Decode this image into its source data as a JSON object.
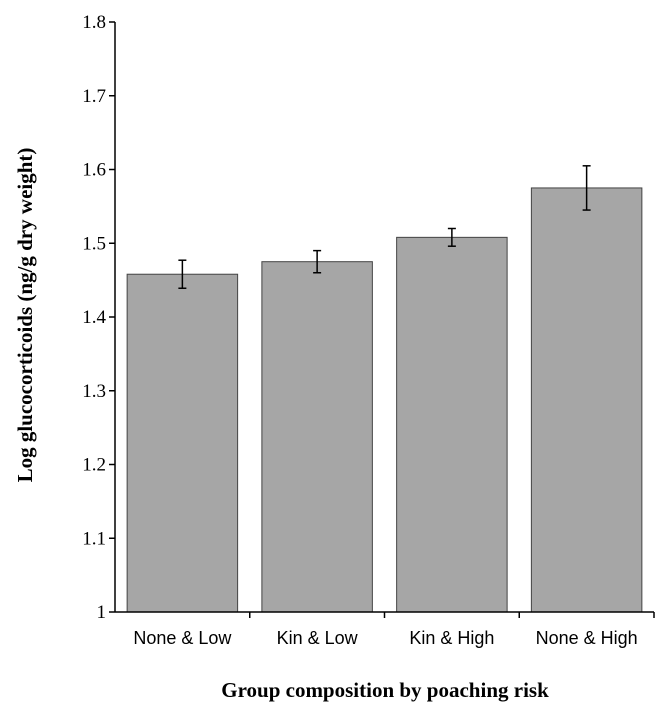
{
  "chart_data": {
    "type": "bar",
    "title": "",
    "xlabel": "Group composition by poaching risk",
    "ylabel": "Log glucocorticoids (ng/g dry weight)",
    "categories": [
      "None & Low",
      "Kin & Low",
      "Kin & High",
      "None & High"
    ],
    "values": [
      1.458,
      1.475,
      1.508,
      1.575
    ],
    "error_bars": [
      0.019,
      0.015,
      0.012,
      0.03
    ],
    "ylim": [
      1.0,
      1.8
    ],
    "yticks": [
      1,
      1.1,
      1.2,
      1.3,
      1.4,
      1.5,
      1.6,
      1.7,
      1.8
    ],
    "ytick_labels": [
      "1",
      "1.1",
      "1.2",
      "1.3",
      "1.4",
      "1.5",
      "1.6",
      "1.7",
      "1.8"
    ],
    "grid": false,
    "legend": "none",
    "colors": {
      "bar_fill": "#a6a6a6",
      "bar_stroke": "#444444",
      "axis": "#000000"
    }
  }
}
